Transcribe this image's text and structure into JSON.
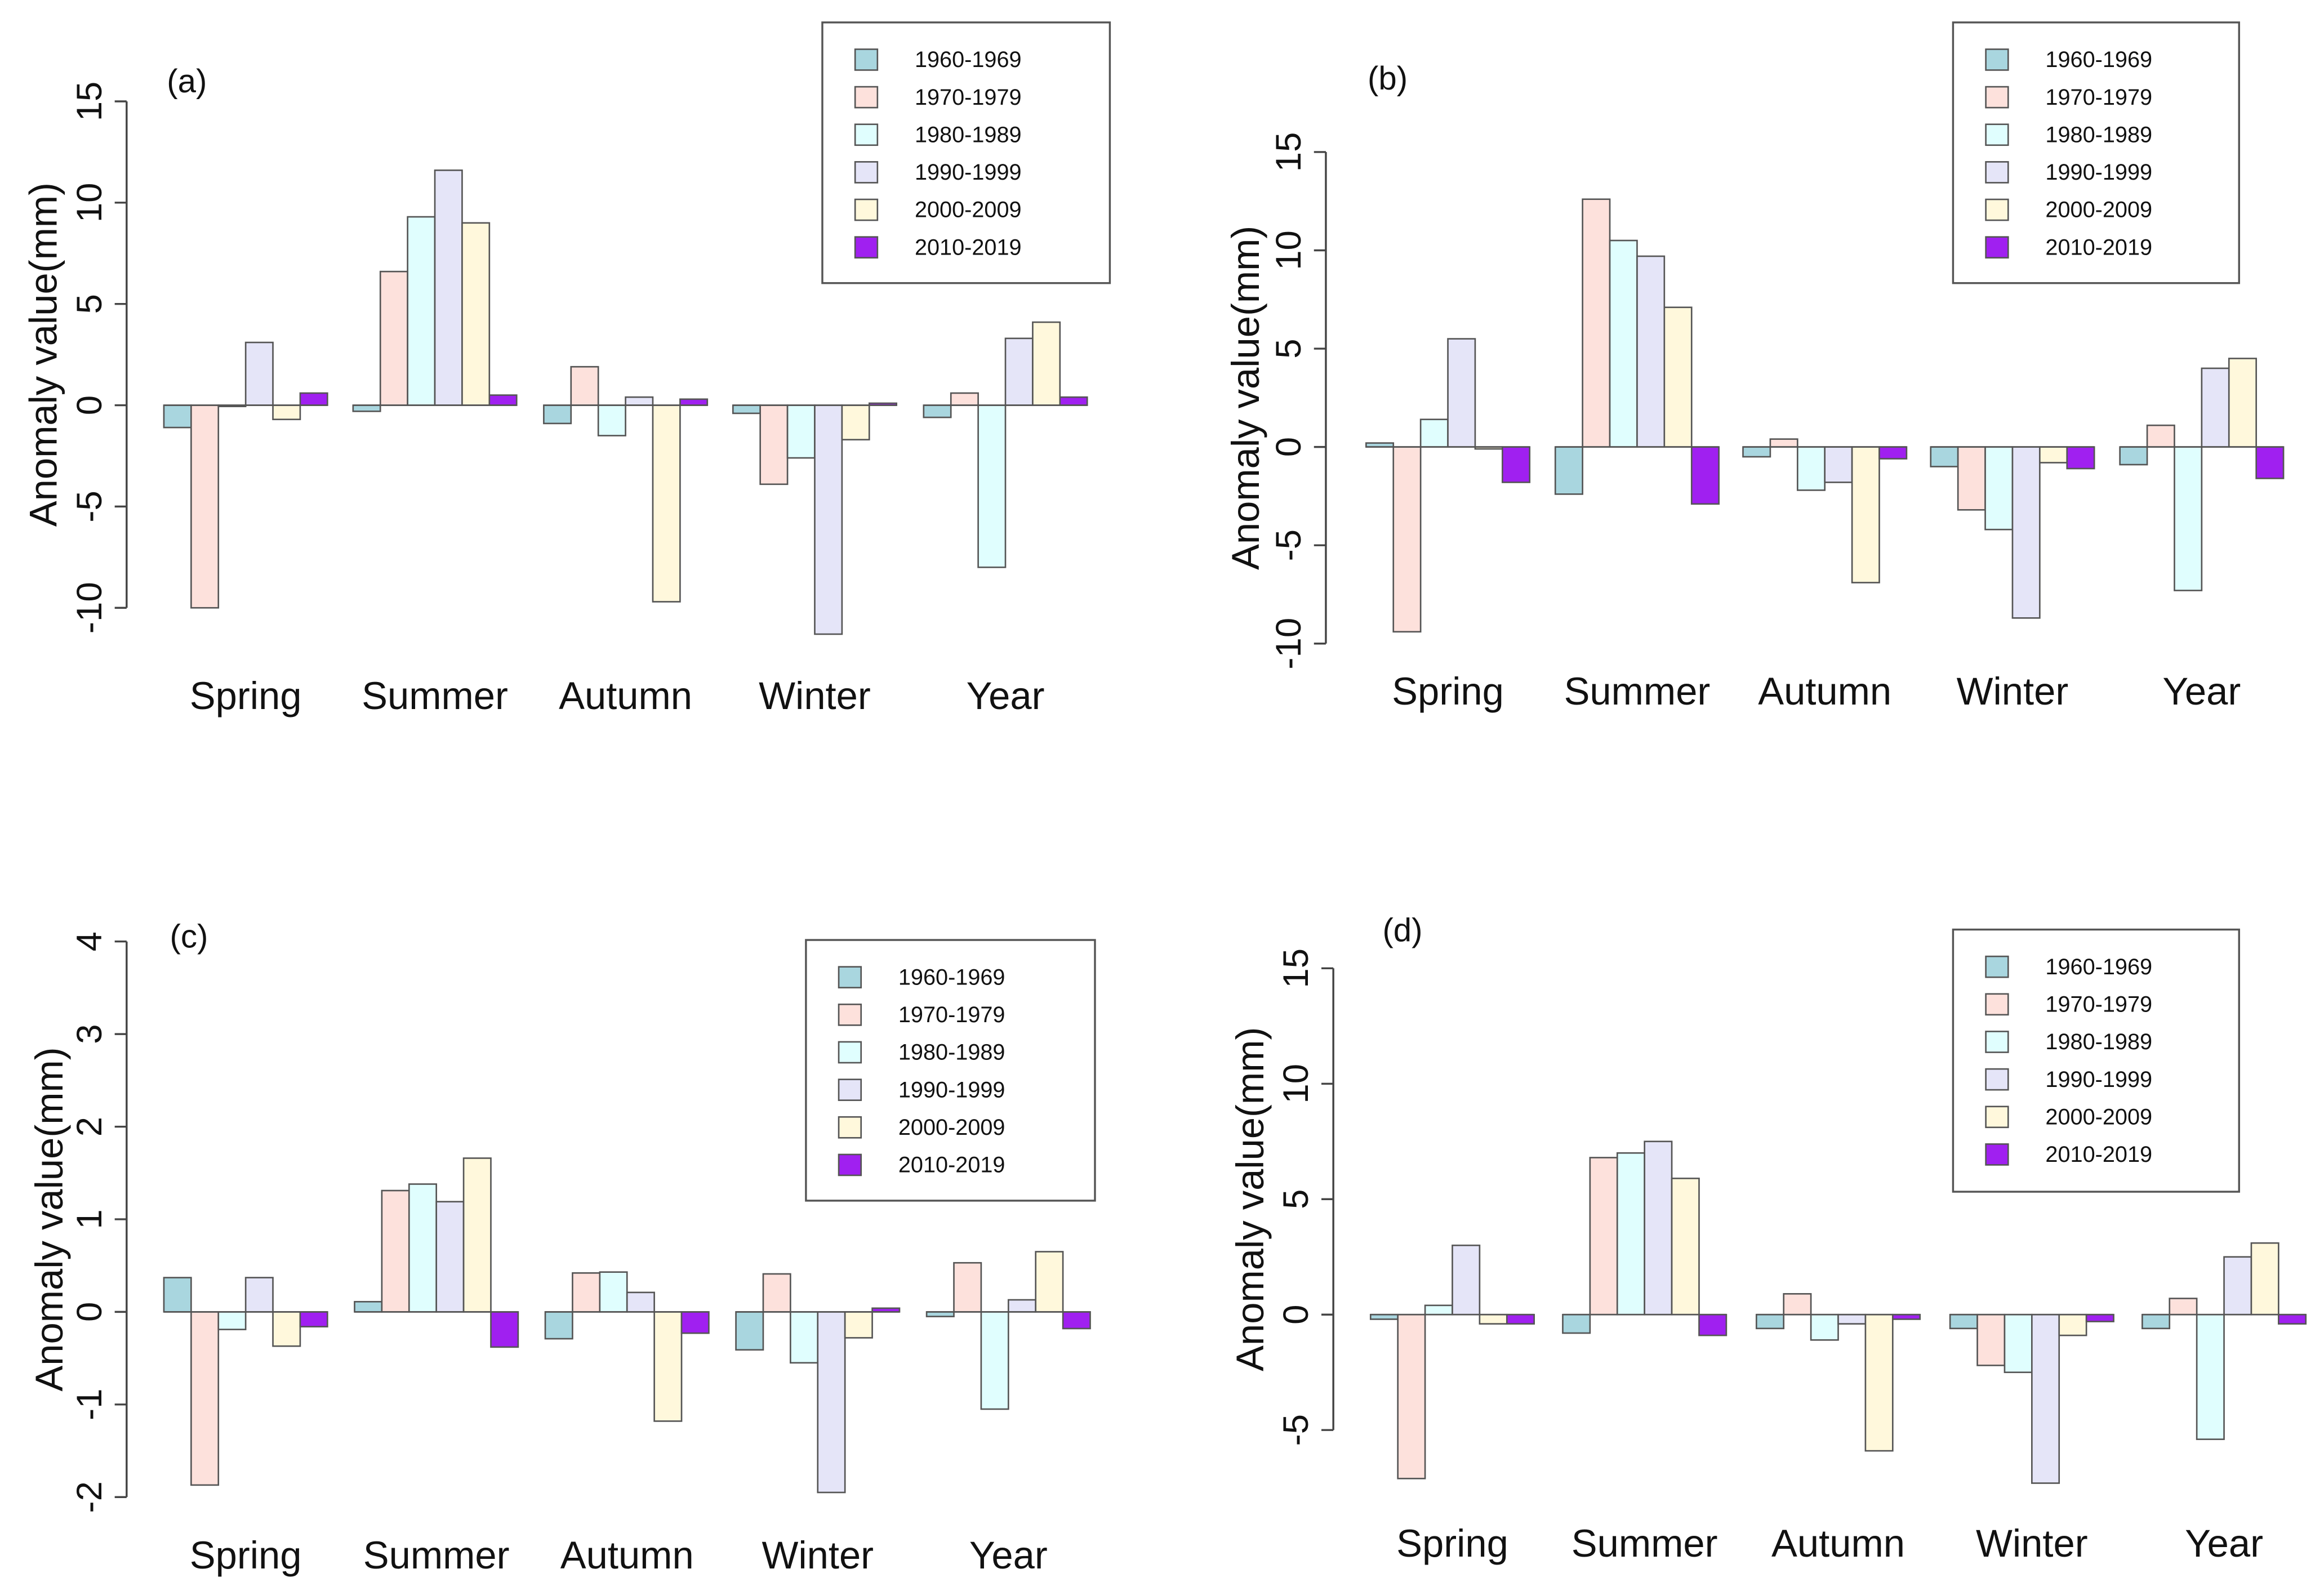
{
  "chart_data": {
    "type": "bar",
    "categories": [
      "Spring",
      "Summer",
      "Autumn",
      "Winter",
      "Year"
    ],
    "legend": [
      "1960-1969",
      "1970-1979",
      "1980-1989",
      "1990-1999",
      "2000-2009",
      "2010-2019"
    ],
    "colors": [
      "#a9d6df",
      "#fde1dc",
      "#e0fefe",
      "#e5e5f8",
      "#fff8dc",
      "#a020f0"
    ],
    "ylabel": "Anomaly value(mm)",
    "panels": [
      {
        "label": "(a)",
        "ylim": [
          -10,
          15
        ],
        "yticks": [
          -10,
          -5,
          0,
          5,
          10,
          15
        ],
        "legend_position": "top-right",
        "series": [
          {
            "name": "1960-1969",
            "values": [
              -1.1,
              -0.3,
              -0.9,
              -0.4,
              -0.6
            ]
          },
          {
            "name": "1970-1979",
            "values": [
              -10.0,
              6.6,
              1.9,
              -3.9,
              0.6
            ]
          },
          {
            "name": "1980-1989",
            "values": [
              -0.05,
              9.3,
              -1.5,
              -2.6,
              -8.0
            ]
          },
          {
            "name": "1990-1999",
            "values": [
              3.1,
              11.6,
              0.4,
              -11.3,
              3.3
            ]
          },
          {
            "name": "2000-2009",
            "values": [
              -0.7,
              9.0,
              -9.7,
              -1.7,
              4.1
            ]
          },
          {
            "name": "2010-2019",
            "values": [
              0.6,
              0.5,
              0.3,
              0.1,
              0.4
            ]
          }
        ]
      },
      {
        "label": "(b)",
        "ylim": [
          -10,
          15
        ],
        "yticks": [
          -10,
          -5,
          0,
          5,
          10,
          15
        ],
        "legend_position": "top-right",
        "series": [
          {
            "name": "1960-1969",
            "values": [
              0.2,
              -2.4,
              -0.5,
              -1.0,
              -0.9
            ]
          },
          {
            "name": "1970-1979",
            "values": [
              -9.4,
              12.6,
              0.4,
              -3.2,
              1.1
            ]
          },
          {
            "name": "1980-1989",
            "values": [
              1.4,
              10.5,
              -2.2,
              -4.2,
              -7.3
            ]
          },
          {
            "name": "1990-1999",
            "values": [
              5.5,
              9.7,
              -1.8,
              -8.7,
              4.0
            ]
          },
          {
            "name": "2000-2009",
            "values": [
              -0.1,
              7.1,
              -6.9,
              -0.8,
              4.5
            ]
          },
          {
            "name": "2010-2019",
            "values": [
              -1.8,
              -2.9,
              -0.6,
              -1.1,
              -1.6
            ]
          }
        ]
      },
      {
        "label": "(c)",
        "ylim": [
          -2,
          4
        ],
        "yticks": [
          -2,
          -1,
          0,
          1,
          2,
          3,
          4
        ],
        "legend_position": "top-right",
        "series": [
          {
            "name": "1960-1969",
            "values": [
              0.37,
              0.11,
              -0.29,
              -0.41,
              -0.05
            ]
          },
          {
            "name": "1970-1979",
            "values": [
              -1.87,
              1.31,
              0.42,
              0.41,
              0.53
            ]
          },
          {
            "name": "1980-1989",
            "values": [
              -0.19,
              1.38,
              0.43,
              -0.55,
              -1.05
            ]
          },
          {
            "name": "1990-1999",
            "values": [
              0.37,
              1.19,
              0.21,
              -1.95,
              0.13
            ]
          },
          {
            "name": "2000-2009",
            "values": [
              -0.37,
              1.66,
              -1.18,
              -0.28,
              0.65
            ]
          },
          {
            "name": "2010-2019",
            "values": [
              -0.16,
              -0.38,
              -0.23,
              0.04,
              -0.18
            ]
          }
        ]
      },
      {
        "label": "(d)",
        "ylim": [
          -5,
          15
        ],
        "yticks": [
          -5,
          0,
          5,
          10,
          15
        ],
        "legend_position": "top-right",
        "series": [
          {
            "name": "1960-1969",
            "values": [
              -0.2,
              -0.8,
              -0.6,
              -0.6,
              -0.6
            ]
          },
          {
            "name": "1970-1979",
            "values": [
              -7.1,
              6.8,
              0.9,
              -2.2,
              0.7
            ]
          },
          {
            "name": "1980-1989",
            "values": [
              0.4,
              7.0,
              -1.1,
              -2.5,
              -5.4
            ]
          },
          {
            "name": "1990-1999",
            "values": [
              3.0,
              7.5,
              -0.4,
              -7.3,
              2.5
            ]
          },
          {
            "name": "2000-2009",
            "values": [
              -0.4,
              5.9,
              -5.9,
              -0.9,
              3.1
            ]
          },
          {
            "name": "2010-2019",
            "values": [
              -0.4,
              -0.9,
              -0.2,
              -0.3,
              -0.4
            ]
          }
        ]
      }
    ]
  }
}
